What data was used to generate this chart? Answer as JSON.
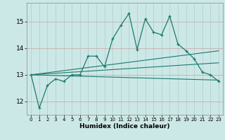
{
  "xlabel": "Humidex (Indice chaleur)",
  "bg_color": "#cce8e6",
  "grid_color_major": "#b8d4d2",
  "grid_color_minor": "#cce8e6",
  "line_color": "#1a7a6e",
  "xlim": [
    -0.5,
    23.5
  ],
  "ylim": [
    11.5,
    15.7
  ],
  "yticks": [
    12,
    13,
    14,
    15
  ],
  "xticks": [
    0,
    1,
    2,
    3,
    4,
    5,
    6,
    7,
    8,
    9,
    10,
    11,
    12,
    13,
    14,
    15,
    16,
    17,
    18,
    19,
    20,
    21,
    22,
    23
  ],
  "series": [
    [
      0,
      13.0
    ],
    [
      1,
      11.75
    ],
    [
      2,
      12.6
    ],
    [
      3,
      12.85
    ],
    [
      4,
      12.75
    ],
    [
      5,
      13.0
    ],
    [
      6,
      13.0
    ],
    [
      7,
      13.7
    ],
    [
      8,
      13.7
    ],
    [
      9,
      13.3
    ],
    [
      10,
      14.35
    ],
    [
      11,
      14.85
    ],
    [
      12,
      15.3
    ],
    [
      13,
      13.95
    ],
    [
      14,
      15.1
    ],
    [
      15,
      14.6
    ],
    [
      16,
      14.5
    ],
    [
      17,
      15.2
    ],
    [
      18,
      14.15
    ],
    [
      19,
      13.9
    ],
    [
      20,
      13.6
    ],
    [
      21,
      13.1
    ],
    [
      22,
      13.0
    ],
    [
      23,
      12.75
    ]
  ],
  "line2": [
    [
      0,
      13.0
    ],
    [
      23,
      13.9
    ]
  ],
  "line3": [
    [
      0,
      13.0
    ],
    [
      23,
      13.45
    ]
  ],
  "line4": [
    [
      0,
      13.0
    ],
    [
      23,
      12.8
    ]
  ]
}
